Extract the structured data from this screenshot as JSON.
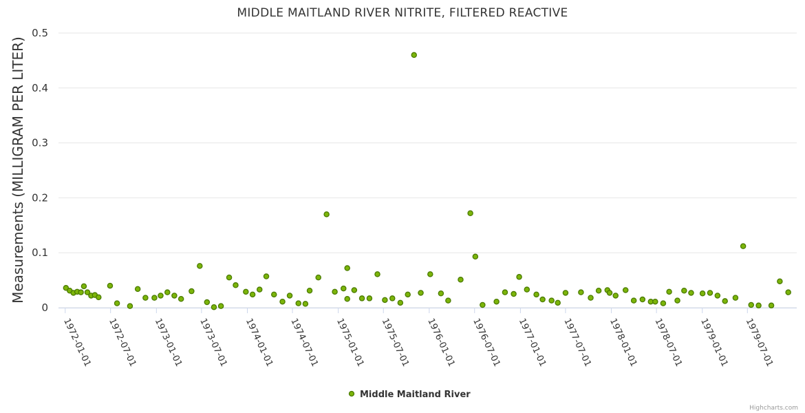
{
  "credits": "Highcharts.com",
  "colors": {
    "marker_fill": "#7cb50a",
    "marker_stroke": "#4a7a00",
    "grid": "#e6e6e6",
    "axis": "#ccd6eb"
  },
  "chart_data": {
    "type": "scatter",
    "title": "MIDDLE MAITLAND RIVER NITRITE, FILTERED REACTIVE",
    "xlabel": "",
    "ylabel": "Measurements (MILLIGRAM PER LITER)",
    "ylim": [
      0,
      0.5
    ],
    "yticks": [
      "0",
      "0.1",
      "0.2",
      "0.3",
      "0.4",
      "0.5"
    ],
    "xlim": [
      "1971-12-05",
      "1980-01-15"
    ],
    "xticks": [
      "1972-01-01",
      "1972-07-01",
      "1973-01-01",
      "1973-07-01",
      "1974-01-01",
      "1974-07-01",
      "1975-01-01",
      "1975-07-01",
      "1976-01-01",
      "1976-07-01",
      "1977-01-01",
      "1977-07-01",
      "1978-01-01",
      "1978-07-01",
      "1979-01-01",
      "1979-07-01"
    ],
    "legend": {
      "position": "bottom-center",
      "entries": [
        "Middle Maitland River"
      ]
    },
    "series": [
      {
        "name": "Middle Maitland River",
        "points": [
          [
            "1972-01-04",
            0.036
          ],
          [
            "1972-01-19",
            0.031
          ],
          [
            "1972-02-03",
            0.027
          ],
          [
            "1972-02-18",
            0.029
          ],
          [
            "1972-03-04",
            0.028
          ],
          [
            "1972-03-16",
            0.039
          ],
          [
            "1972-03-30",
            0.028
          ],
          [
            "1972-04-14",
            0.022
          ],
          [
            "1972-04-29",
            0.023
          ],
          [
            "1972-05-14",
            0.019
          ],
          [
            "1972-06-29",
            0.04
          ],
          [
            "1972-07-27",
            0.008
          ],
          [
            "1972-09-17",
            0.003
          ],
          [
            "1972-10-18",
            0.034
          ],
          [
            "1972-11-18",
            0.018
          ],
          [
            "1972-12-24",
            0.018
          ],
          [
            "1973-01-18",
            0.022
          ],
          [
            "1973-02-14",
            0.028
          ],
          [
            "1973-03-14",
            0.022
          ],
          [
            "1973-04-10",
            0.016
          ],
          [
            "1973-05-22",
            0.03
          ],
          [
            "1973-06-24",
            0.076
          ],
          [
            "1973-07-23",
            0.01
          ],
          [
            "1973-08-20",
            0.001
          ],
          [
            "1973-09-17",
            0.003
          ],
          [
            "1973-10-20",
            0.055
          ],
          [
            "1973-11-15",
            0.041
          ],
          [
            "1973-12-26",
            0.029
          ],
          [
            "1974-01-22",
            0.024
          ],
          [
            "1974-02-19",
            0.033
          ],
          [
            "1974-03-18",
            0.057
          ],
          [
            "1974-04-18",
            0.024
          ],
          [
            "1974-05-22",
            0.011
          ],
          [
            "1974-06-20",
            0.022
          ],
          [
            "1974-07-25",
            0.008
          ],
          [
            "1974-08-22",
            0.007
          ],
          [
            "1974-09-08",
            0.031
          ],
          [
            "1974-10-13",
            0.055
          ],
          [
            "1974-11-15",
            0.17
          ],
          [
            "1974-12-18",
            0.029
          ],
          [
            "1975-01-22",
            0.035
          ],
          [
            "1975-02-06",
            0.072
          ],
          [
            "1975-02-06",
            0.016
          ],
          [
            "1975-03-06",
            0.032
          ],
          [
            "1975-04-06",
            0.017
          ],
          [
            "1975-05-06",
            0.017
          ],
          [
            "1975-06-07",
            0.061
          ],
          [
            "1975-07-07",
            0.014
          ],
          [
            "1975-08-06",
            0.017
          ],
          [
            "1975-09-07",
            0.009
          ],
          [
            "1975-10-07",
            0.024
          ],
          [
            "1975-11-01",
            0.46
          ],
          [
            "1975-11-28",
            0.027
          ],
          [
            "1976-01-05",
            0.061
          ],
          [
            "1976-02-17",
            0.026
          ],
          [
            "1976-03-17",
            0.013
          ],
          [
            "1976-05-06",
            0.051
          ],
          [
            "1976-06-14",
            0.172
          ],
          [
            "1976-07-04",
            0.093
          ],
          [
            "1976-08-02",
            0.005
          ],
          [
            "1976-09-27",
            0.011
          ],
          [
            "1976-10-31",
            0.028
          ],
          [
            "1976-12-05",
            0.025
          ],
          [
            "1976-12-27",
            0.056
          ],
          [
            "1977-01-27",
            0.033
          ],
          [
            "1977-03-06",
            0.024
          ],
          [
            "1977-03-31",
            0.015
          ],
          [
            "1977-05-06",
            0.013
          ],
          [
            "1977-05-31",
            0.009
          ],
          [
            "1977-07-01",
            0.027
          ],
          [
            "1977-09-01",
            0.028
          ],
          [
            "1977-10-10",
            0.018
          ],
          [
            "1977-11-11",
            0.031
          ],
          [
            "1977-12-16",
            0.032
          ],
          [
            "1977-12-25",
            0.027
          ],
          [
            "1978-01-18",
            0.022
          ],
          [
            "1978-02-27",
            0.032
          ],
          [
            "1978-04-01",
            0.013
          ],
          [
            "1978-05-06",
            0.015
          ],
          [
            "1978-06-08",
            0.011
          ],
          [
            "1978-06-26",
            0.011
          ],
          [
            "1978-07-28",
            0.008
          ],
          [
            "1978-08-21",
            0.029
          ],
          [
            "1978-09-23",
            0.013
          ],
          [
            "1978-10-20",
            0.031
          ],
          [
            "1978-11-17",
            0.027
          ],
          [
            "1979-01-02",
            0.026
          ],
          [
            "1979-02-01",
            0.027
          ],
          [
            "1979-03-03",
            0.022
          ],
          [
            "1979-04-02",
            0.012
          ],
          [
            "1979-05-14",
            0.018
          ],
          [
            "1979-06-14",
            0.112
          ],
          [
            "1979-07-16",
            0.005
          ],
          [
            "1979-08-15",
            0.004
          ],
          [
            "1979-10-05",
            0.004
          ],
          [
            "1979-11-08",
            0.048
          ],
          [
            "1979-12-12",
            0.028
          ]
        ]
      }
    ]
  }
}
